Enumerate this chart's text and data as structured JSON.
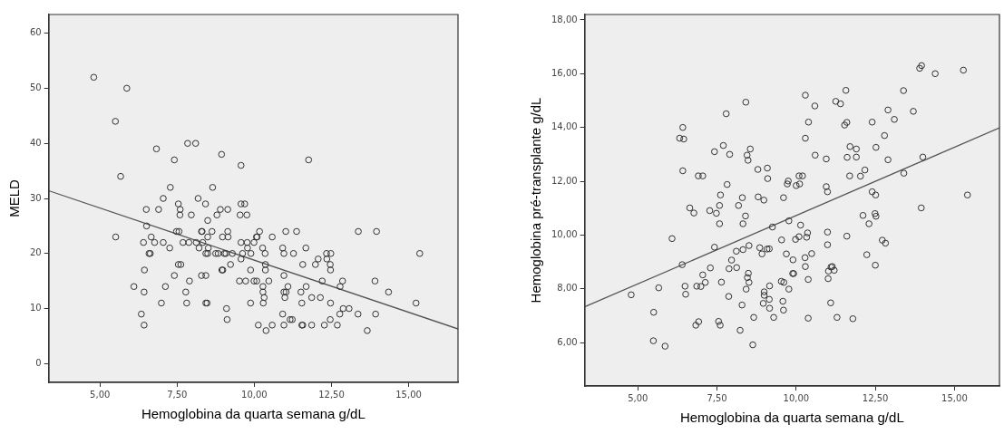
{
  "chart_data": [
    {
      "type": "scatter",
      "xlabel": "Hemoglobina da quarta semana g/dL",
      "ylabel": "MELD",
      "xlim": [
        3.34,
        16.6
      ],
      "ylim": [
        -3.4,
        63.4
      ],
      "xticks": [
        {
          "value": 5,
          "label": "5,00"
        },
        {
          "value": 7.5,
          "label": "7,50"
        },
        {
          "value": 10,
          "label": "10,00"
        },
        {
          "value": 12.5,
          "label": "12,50"
        },
        {
          "value": 15,
          "label": "15,00"
        }
      ],
      "yticks": [
        0,
        10,
        20,
        30,
        40,
        50,
        60
      ],
      "grid": false,
      "legend": false,
      "series": [
        {
          "type": "scatter",
          "marker": "circle",
          "color": "#333333",
          "x": [
            4.8,
            5.87,
            5.5,
            5.67,
            6.83,
            7.84,
            8.1,
            7.41,
            8.94,
            9.57,
            11.76,
            7.28,
            8.65,
            7.05,
            8.18,
            7.54,
            8.42,
            9.57,
            9.69,
            6.5,
            6.9,
            7.6,
            8.9,
            9.14,
            7.59,
            7.96,
            8.79,
            9.54,
            9.76,
            8.49,
            7.48,
            7.56,
            8.29,
            8.31,
            8.63,
            9.14,
            10.17,
            11.02,
            11.37,
            13.37,
            13.96,
            6.51,
            5.51,
            6.66,
            8.97,
            9.15,
            10.07,
            10.09,
            10.58,
            8.49,
            6.41,
            6.77,
            7.05,
            7.69,
            7.88,
            8.12,
            8.33,
            9.57,
            9.77,
            9.99,
            7.26,
            8.21,
            8.51,
            9.78,
            10.27,
            10.92,
            11.67,
            6.59,
            6.63,
            8.43,
            8.49,
            8.75,
            8.83,
            9.03,
            9.08,
            9.29,
            9.62,
            9.89,
            10.35,
            10.96,
            11.27,
            12.34,
            12.48,
            15.36,
            9.57,
            12.07,
            12.35,
            7.54,
            7.62,
            9.23,
            10.36,
            11.57,
            11.98,
            12.46,
            6.44,
            8.95,
            8.98,
            9.88,
            10.36,
            12.47,
            7.41,
            8.29,
            8.43,
            10.96,
            7.9,
            9.52,
            9.72,
            9.99,
            10.08,
            10.47,
            12.2,
            12.86,
            13.91,
            6.1,
            7.12,
            10.28,
            11.09,
            11.68,
            12.78,
            6.43,
            7.78,
            10.28,
            10.96,
            11.03,
            11.51,
            14.35,
            10.32,
            10.99,
            11.86,
            12.14,
            6.99,
            7.81,
            8.43,
            8.47,
            9.88,
            10.29,
            11.54,
            12.47,
            15.24,
            9.1,
            12.88,
            13.07,
            6.34,
            10.92,
            12.77,
            13.36,
            13.93,
            9.12,
            11.16,
            11.23,
            12.46,
            6.43,
            10.13,
            10.58,
            10.96,
            11.54,
            11.57,
            11.86,
            12.27,
            12.69,
            10.38,
            13.66
          ],
          "values": [
            52,
            50,
            44,
            34,
            39,
            40,
            40,
            37,
            38,
            36,
            37,
            32,
            32,
            30,
            30,
            29,
            29,
            29,
            29,
            28,
            28,
            28,
            28,
            28,
            27,
            27,
            27,
            27,
            27,
            26,
            24,
            24,
            24,
            24,
            24,
            24,
            24,
            24,
            24,
            24,
            24,
            25,
            23,
            23,
            23,
            23,
            23,
            23,
            23,
            23,
            22,
            22,
            22,
            22,
            22,
            22,
            22,
            22,
            22,
            22,
            21,
            21,
            21,
            21,
            21,
            21,
            21,
            20,
            20,
            20,
            20,
            20,
            20,
            20,
            20,
            20,
            20,
            20,
            20,
            20,
            20,
            20,
            20,
            20,
            19,
            19,
            19,
            18,
            18,
            18,
            18,
            18,
            18,
            18,
            17,
            17,
            17,
            17,
            17,
            17,
            16,
            16,
            16,
            16,
            15,
            15,
            15,
            15,
            15,
            15,
            15,
            15,
            15,
            14,
            14,
            14,
            14,
            14,
            14,
            13,
            13,
            13,
            13,
            13,
            13,
            13,
            12,
            12,
            12,
            12,
            11,
            11,
            11,
            11,
            11,
            11,
            11,
            11,
            11,
            10,
            10,
            10,
            9,
            9,
            9,
            9,
            9,
            8,
            8,
            8,
            8,
            7,
            7,
            7,
            7,
            7,
            7,
            7,
            7,
            7,
            6,
            6
          ]
        },
        {
          "type": "line",
          "marker": "none",
          "color": "#555555",
          "x": [
            3.34,
            16.6
          ],
          "values": [
            31.4,
            6.3
          ]
        }
      ]
    },
    {
      "type": "scatter",
      "xlabel": "Hemoglobina da quarta semana g/dL",
      "ylabel": "Hemoglobina pré-transplante g/dL",
      "xlim": [
        3.32,
        16.42
      ],
      "ylim": [
        4.39,
        18.2
      ],
      "xticks": [
        {
          "value": 5,
          "label": "5,00"
        },
        {
          "value": 7.5,
          "label": "7,50"
        },
        {
          "value": 10,
          "label": "10,00"
        },
        {
          "value": 12.5,
          "label": "12,50"
        },
        {
          "value": 15,
          "label": "15,00"
        }
      ],
      "yticks": [
        {
          "value": 6,
          "label": "6,00"
        },
        {
          "value": 8,
          "label": "8,00"
        },
        {
          "value": 10,
          "label": "10,00"
        },
        {
          "value": 12,
          "label": "12,00"
        },
        {
          "value": 14,
          "label": "14,00"
        },
        {
          "value": 16,
          "label": "16,00"
        },
        {
          "value": 18,
          "label": "18,00"
        }
      ],
      "grid": false,
      "legend": false,
      "series": [
        {
          "type": "scatter",
          "marker": "circle",
          "color": "#333333",
          "x": [
            13.96,
            13.9,
            14.39,
            15.28,
            8.41,
            7.79,
            10.29,
            10.59,
            11.57,
            11.25,
            11.4,
            13.39,
            12.9,
            13.7,
            13.1,
            6.42,
            6.32,
            6.45,
            10.39,
            11.6,
            11.53,
            12.4,
            10.29,
            12.79,
            7.7,
            7.42,
            7.9,
            8.55,
            8.45,
            8.48,
            10.6,
            10.95,
            11.7,
            11.9,
            12.52,
            11.61,
            11.9,
            12.9,
            14.0,
            6.42,
            6.91,
            7.05,
            8.79,
            9.09,
            9.1,
            7.82,
            9.75,
            9.72,
            10.09,
            10.2,
            10.0,
            10.11,
            11.69,
            12.03,
            12.17,
            13.4,
            10.95,
            10.99,
            12.4,
            12.51,
            15.41,
            7.61,
            8.3,
            8.8,
            8.98,
            9.6,
            6.64,
            7.58,
            8.18,
            13.95,
            6.77,
            7.27,
            7.48,
            12.11,
            12.49,
            12.52,
            8.4,
            7.58,
            8.32,
            9.77,
            10.14,
            9.25,
            12.3,
            6.08,
            7.42,
            6.4,
            4.79,
            10.36,
            10.09,
            10.33,
            9.98,
            9.54,
            10.99,
            11.6,
            12.72,
            12.82,
            10.99,
            8.51,
            8.85,
            9.08,
            9.15,
            8.32,
            8.11,
            8.92,
            9.69,
            10.49,
            12.23,
            7.96,
            9.9,
            10.28,
            10.29,
            12.5,
            7.29,
            7.88,
            8.12,
            8.49,
            8.46,
            8.51,
            7.05,
            7.13,
            7.64,
            9.89,
            9.92,
            11.1,
            11.02,
            11.2,
            11.14,
            11.01,
            10.38,
            9.53,
            9.61,
            9.16,
            9.77,
            8.42,
            5.66,
            6.49,
            6.51,
            6.86,
            6.99,
            7.87,
            8.99,
            8.99,
            9.15,
            8.96,
            9.58,
            8.29,
            9.16,
            9.6,
            11.09,
            5.5,
            5.49,
            5.86,
            8.63,
            8.23,
            6.92,
            6.83,
            7.55,
            7.6,
            8.66,
            9.29,
            10.38,
            11.29,
            11.79
          ],
          "values": [
            16.3,
            16.2,
            16.0,
            16.13,
            14.94,
            14.51,
            15.2,
            14.8,
            15.38,
            14.97,
            14.88,
            15.37,
            14.65,
            14.6,
            14.3,
            14.0,
            13.6,
            13.57,
            14.2,
            14.19,
            14.09,
            14.2,
            13.6,
            13.7,
            13.33,
            13.1,
            13.0,
            13.2,
            12.97,
            12.78,
            12.97,
            12.83,
            13.29,
            13.2,
            13.26,
            12.89,
            12.9,
            12.8,
            12.9,
            12.39,
            12.2,
            12.2,
            12.44,
            12.49,
            12.1,
            11.88,
            12.01,
            11.9,
            12.2,
            12.2,
            11.84,
            11.9,
            12.2,
            12.19,
            12.42,
            12.3,
            11.8,
            11.61,
            11.61,
            11.49,
            11.49,
            11.49,
            11.39,
            11.42,
            11.3,
            11.39,
            11.01,
            11.1,
            11.1,
            11.01,
            10.82,
            10.91,
            10.81,
            10.73,
            10.8,
            10.7,
            10.71,
            10.42,
            10.42,
            10.53,
            10.37,
            10.3,
            10.42,
            9.87,
            9.55,
            8.9,
            7.78,
            10.08,
            9.94,
            9.92,
            9.84,
            9.82,
            10.11,
            9.96,
            9.81,
            9.7,
            9.64,
            9.61,
            9.53,
            9.48,
            9.49,
            9.46,
            9.4,
            9.3,
            9.3,
            9.31,
            9.27,
            9.07,
            9.08,
            9.16,
            8.83,
            8.88,
            8.78,
            8.75,
            8.79,
            8.58,
            8.42,
            8.24,
            8.52,
            8.24,
            8.25,
            8.57,
            8.57,
            8.81,
            8.66,
            8.69,
            8.83,
            8.38,
            8.35,
            8.28,
            8.24,
            8.11,
            7.99,
            7.99,
            8.04,
            8.1,
            7.8,
            8.1,
            8.09,
            7.72,
            7.89,
            7.76,
            7.61,
            7.46,
            7.54,
            7.4,
            7.28,
            7.21,
            7.48,
            7.13,
            6.07,
            5.87,
            5.92,
            6.46,
            6.78,
            6.65,
            6.79,
            6.65,
            6.94,
            6.94,
            6.91,
            6.94,
            6.89
          ]
        },
        {
          "type": "line",
          "marker": "none",
          "color": "#555555",
          "x": [
            3.32,
            16.42
          ],
          "values": [
            7.33,
            13.99
          ]
        }
      ]
    }
  ]
}
